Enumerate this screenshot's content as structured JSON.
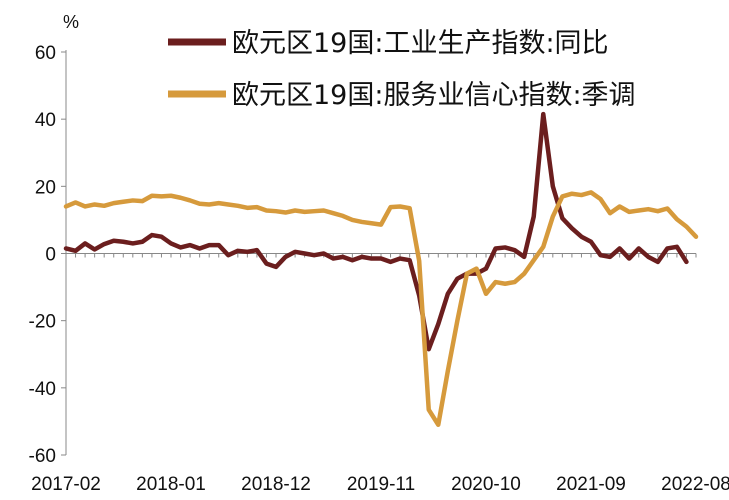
{
  "chart_data": {
    "type": "line",
    "unit": "%",
    "ylim": [
      -60,
      60
    ],
    "yticks": [
      -60,
      -40,
      -20,
      0,
      20,
      40,
      60
    ],
    "x_tick_labels": [
      "2017-02",
      "2018-01",
      "2018-12",
      "2019-11",
      "2020-10",
      "2021-09",
      "2022-08"
    ],
    "x_start": "2017-02",
    "x_end": "2022-08",
    "legend_position": "top-right",
    "grid": false,
    "series": [
      {
        "name": "欧元区19国:工业生产指数:同比",
        "color": "#6b1e1e",
        "x": [
          "2017-02",
          "2017-03",
          "2017-04",
          "2017-05",
          "2017-06",
          "2017-07",
          "2017-08",
          "2017-09",
          "2017-10",
          "2017-11",
          "2017-12",
          "2018-01",
          "2018-02",
          "2018-03",
          "2018-04",
          "2018-05",
          "2018-06",
          "2018-07",
          "2018-08",
          "2018-09",
          "2018-10",
          "2018-11",
          "2018-12",
          "2019-01",
          "2019-02",
          "2019-03",
          "2019-04",
          "2019-05",
          "2019-06",
          "2019-07",
          "2019-08",
          "2019-09",
          "2019-10",
          "2019-11",
          "2019-12",
          "2020-01",
          "2020-02",
          "2020-03",
          "2020-04",
          "2020-05",
          "2020-06",
          "2020-07",
          "2020-08",
          "2020-09",
          "2020-10",
          "2020-11",
          "2020-12",
          "2021-01",
          "2021-02",
          "2021-03",
          "2021-04",
          "2021-05",
          "2021-06",
          "2021-07",
          "2021-08",
          "2021-09",
          "2021-10",
          "2021-11",
          "2021-12",
          "2022-01",
          "2022-02",
          "2022-03",
          "2022-04",
          "2022-05",
          "2022-06",
          "2022-07"
        ],
        "values": [
          1.5,
          0.8,
          3.0,
          1.2,
          2.8,
          3.8,
          3.5,
          3.0,
          3.5,
          5.5,
          5.0,
          3.0,
          1.8,
          2.5,
          1.5,
          2.5,
          2.5,
          -0.5,
          0.8,
          0.5,
          1.0,
          -3.0,
          -4.0,
          -1.0,
          0.5,
          0.0,
          -0.5,
          0.0,
          -1.5,
          -1.0,
          -2.0,
          -1.0,
          -1.5,
          -1.5,
          -2.5,
          -1.5,
          -2.0,
          -12.5,
          -28.5,
          -21.0,
          -12.0,
          -7.5,
          -6.0,
          -6.0,
          -4.5,
          1.5,
          1.8,
          1.0,
          -1.0,
          11.0,
          41.5,
          20.0,
          10.5,
          7.5,
          5.0,
          3.5,
          -0.5,
          -1.0,
          1.5,
          -1.5,
          1.5,
          -1.0,
          -2.5,
          1.5,
          2.0,
          -2.5
        ]
      },
      {
        "name": "欧元区19国:服务业信心指数:季调",
        "color": "#d69a3c",
        "x": [
          "2017-02",
          "2017-03",
          "2017-04",
          "2017-05",
          "2017-06",
          "2017-07",
          "2017-08",
          "2017-09",
          "2017-10",
          "2017-11",
          "2017-12",
          "2018-01",
          "2018-02",
          "2018-03",
          "2018-04",
          "2018-05",
          "2018-06",
          "2018-07",
          "2018-08",
          "2018-09",
          "2018-10",
          "2018-11",
          "2018-12",
          "2019-01",
          "2019-02",
          "2019-03",
          "2019-04",
          "2019-05",
          "2019-06",
          "2019-07",
          "2019-08",
          "2019-09",
          "2019-10",
          "2019-11",
          "2019-12",
          "2020-01",
          "2020-02",
          "2020-03",
          "2020-04",
          "2020-05",
          "2020-06",
          "2020-07",
          "2020-08",
          "2020-09",
          "2020-10",
          "2020-11",
          "2020-12",
          "2021-01",
          "2021-02",
          "2021-03",
          "2021-04",
          "2021-05",
          "2021-06",
          "2021-07",
          "2021-08",
          "2021-09",
          "2021-10",
          "2021-11",
          "2021-12",
          "2022-01",
          "2022-02",
          "2022-03",
          "2022-04",
          "2022-05",
          "2022-06",
          "2022-07",
          "2022-08"
        ],
        "values": [
          14.0,
          15.2,
          14.0,
          14.6,
          14.2,
          15.0,
          15.4,
          15.8,
          15.6,
          17.2,
          17.0,
          17.2,
          16.6,
          15.8,
          14.8,
          14.6,
          15.0,
          14.6,
          14.2,
          13.6,
          13.8,
          12.8,
          12.6,
          12.2,
          12.8,
          12.4,
          12.6,
          12.8,
          12.0,
          11.2,
          10.0,
          9.4,
          9.0,
          8.6,
          13.8,
          14.0,
          13.5,
          -2.2,
          -46.5,
          -51.0,
          -35.0,
          -20.0,
          -6.0,
          -4.5,
          -12.0,
          -8.5,
          -9.0,
          -8.5,
          -6.0,
          -2.0,
          2.0,
          11.0,
          17.0,
          17.8,
          17.4,
          18.2,
          16.2,
          12.0,
          14.0,
          12.4,
          12.8,
          13.2,
          12.6,
          13.4,
          10.2,
          8.0,
          5.0
        ]
      }
    ]
  }
}
